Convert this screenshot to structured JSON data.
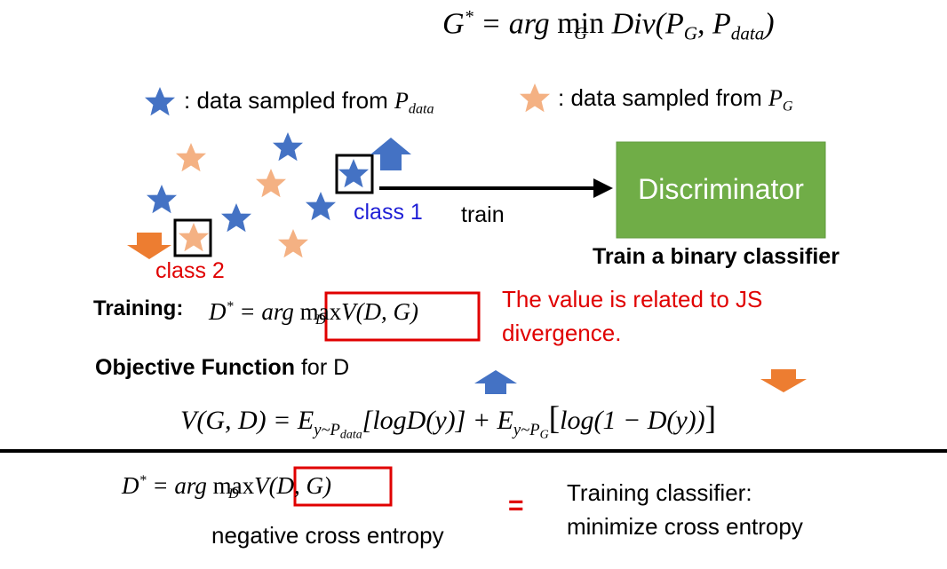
{
  "top_formula": {
    "g_star": "G",
    "sup": "*",
    "eq": " = arg ",
    "min": "min",
    "min_under": "G",
    "div": " Div(P",
    "pg_sub": "G",
    "comma": ", P",
    "pdata_sub": "data",
    "close": ")"
  },
  "legend": {
    "blue_text": ": data sampled from ",
    "blue_p": "P",
    "blue_p_sub": "data",
    "orange_text": ": data sampled from ",
    "orange_p": "P",
    "orange_p_sub": "G"
  },
  "labels": {
    "class1": "class 1",
    "class2": "class 2",
    "train": "train",
    "discriminator": "Discriminator",
    "binary_caption": "Train a binary classifier"
  },
  "training": {
    "label": "Training:",
    "d": "D",
    "sup": "*",
    "eq": " = arg ",
    "max": "max",
    "max_under": "D",
    "v": "V(D, G)"
  },
  "js_note": {
    "line1": "The value is related to JS",
    "line2": "divergence."
  },
  "objective": {
    "bold": "Objective Function",
    "rest": " for D"
  },
  "vgd": {
    "lhs": "V(G, D) = E",
    "sub1_a": "y~P",
    "sub1_b": "data",
    "term1": "[logD(y)] + E",
    "sub2_a": "y~P",
    "sub2_b": "G",
    "term2_open": "[",
    "term2": "log(1 − D(y))",
    "term2_close": "]"
  },
  "bottom": {
    "d": "D",
    "sup": "*",
    "eq": " = arg ",
    "max": "max",
    "max_under": "D",
    "v": "V(D, G)",
    "neg_ce": "negative cross entropy",
    "equals": "=",
    "rhs1": "Training classifier:",
    "rhs2": "minimize cross entropy"
  },
  "colors": {
    "blue_star": "#4472c4",
    "orange_star": "#f4b183",
    "red": "#e00000",
    "disc_green": "#70ad47",
    "arrow_blue": "#4472c4",
    "arrow_orange": "#ed7d31",
    "class1": "#1f1fd6"
  }
}
